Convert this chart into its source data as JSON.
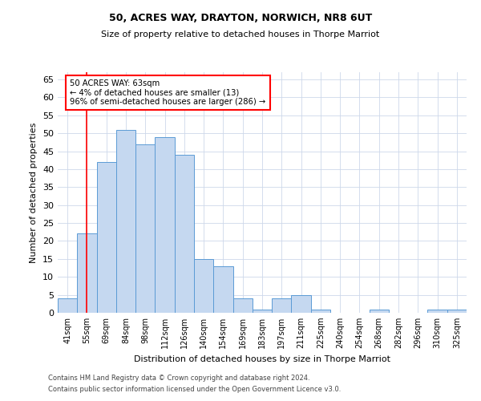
{
  "title": "50, ACRES WAY, DRAYTON, NORWICH, NR8 6UT",
  "subtitle": "Size of property relative to detached houses in Thorpe Marriot",
  "xlabel": "Distribution of detached houses by size in Thorpe Marriot",
  "ylabel": "Number of detached properties",
  "bar_labels": [
    "41sqm",
    "55sqm",
    "69sqm",
    "84sqm",
    "98sqm",
    "112sqm",
    "126sqm",
    "140sqm",
    "154sqm",
    "169sqm",
    "183sqm",
    "197sqm",
    "211sqm",
    "225sqm",
    "240sqm",
    "254sqm",
    "268sqm",
    "282sqm",
    "296sqm",
    "310sqm",
    "325sqm"
  ],
  "bar_heights": [
    4,
    22,
    42,
    51,
    47,
    49,
    44,
    15,
    13,
    4,
    1,
    4,
    5,
    1,
    0,
    0,
    1,
    0,
    0,
    1,
    1
  ],
  "bar_color": "#c5d8f0",
  "bar_edge_color": "#5b9bd5",
  "annotation_text": "50 ACRES WAY: 63sqm\n← 4% of detached houses are smaller (13)\n96% of semi-detached houses are larger (286) →",
  "ylim": [
    0,
    67
  ],
  "yticks": [
    0,
    5,
    10,
    15,
    20,
    25,
    30,
    35,
    40,
    45,
    50,
    55,
    60,
    65
  ],
  "footer_line1": "Contains HM Land Registry data © Crown copyright and database right 2024.",
  "footer_line2": "Contains public sector information licensed under the Open Government Licence v3.0.",
  "background_color": "#ffffff",
  "grid_color": "#cdd8ea",
  "ref_line_x": 1.0,
  "title_fontsize": 9,
  "subtitle_fontsize": 8,
  "ylabel_fontsize": 8,
  "xlabel_fontsize": 8
}
